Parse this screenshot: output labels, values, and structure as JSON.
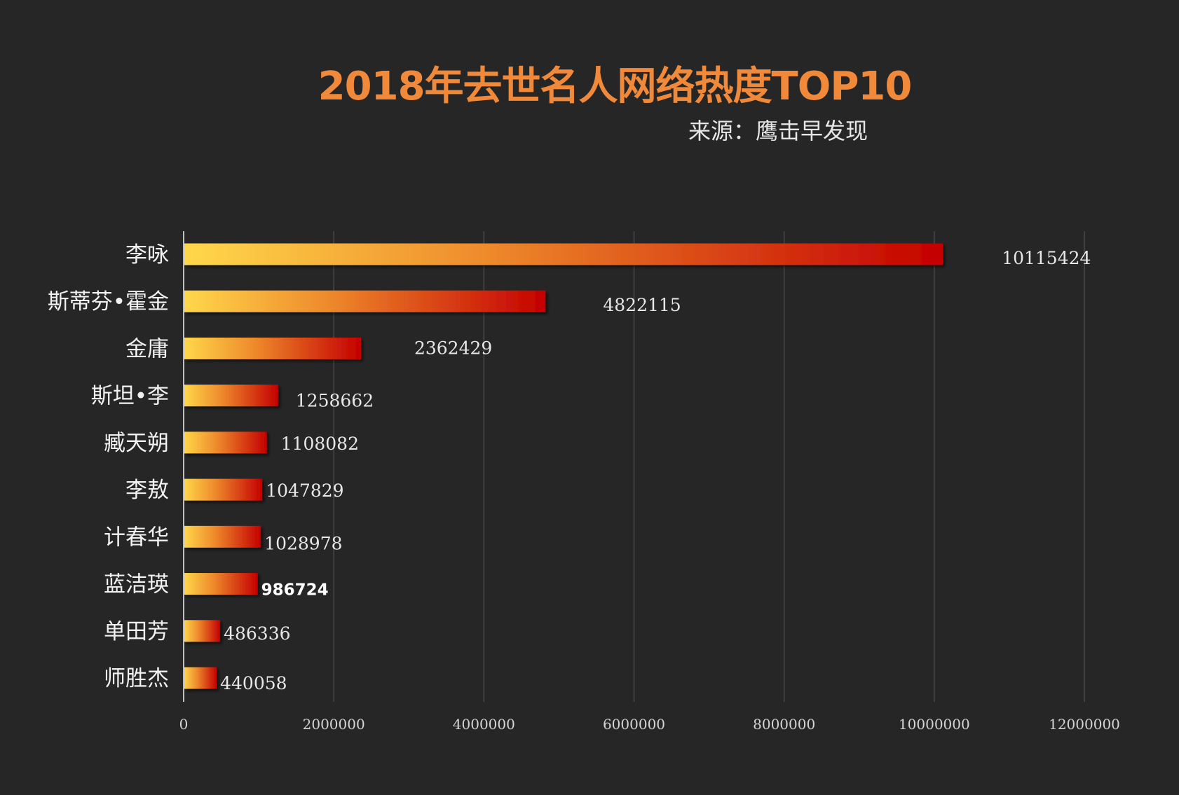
{
  "colors": {
    "background": "#262626",
    "title": "#f08a3a",
    "bar_start": "#ffd84a",
    "bar_mid": "#ee8a2c",
    "bar_end": "#c40000"
  },
  "chart_data": {
    "type": "bar",
    "orientation": "horizontal",
    "title": "2018年去世名人网络热度TOP10",
    "subtitle": "来源：鹰击早发现",
    "xlabel": "",
    "ylabel": "",
    "xlim": [
      0,
      12000000
    ],
    "xticks": [
      0,
      2000000,
      4000000,
      6000000,
      8000000,
      10000000,
      12000000
    ],
    "xtick_labels": [
      "0",
      "2000000",
      "4000000",
      "6000000",
      "8000000",
      "10000000",
      "12000000"
    ],
    "grid": true,
    "legend": "none",
    "categories": [
      "李咏",
      "斯蒂芬•霍金",
      "金庸",
      "斯坦•李",
      "臧天朔",
      "李敖",
      "计春华",
      "蓝洁瑛",
      "单田芳",
      "师胜杰"
    ],
    "values": [
      10115424,
      4822115,
      2362429,
      1258662,
      1108082,
      1047829,
      1028978,
      986724,
      486336,
      440058
    ],
    "value_labels": [
      "10115424",
      "4822115",
      "2362429",
      "1258662",
      "1108082",
      "1047829",
      "1028978",
      "986724",
      "486336",
      "440058"
    ]
  }
}
